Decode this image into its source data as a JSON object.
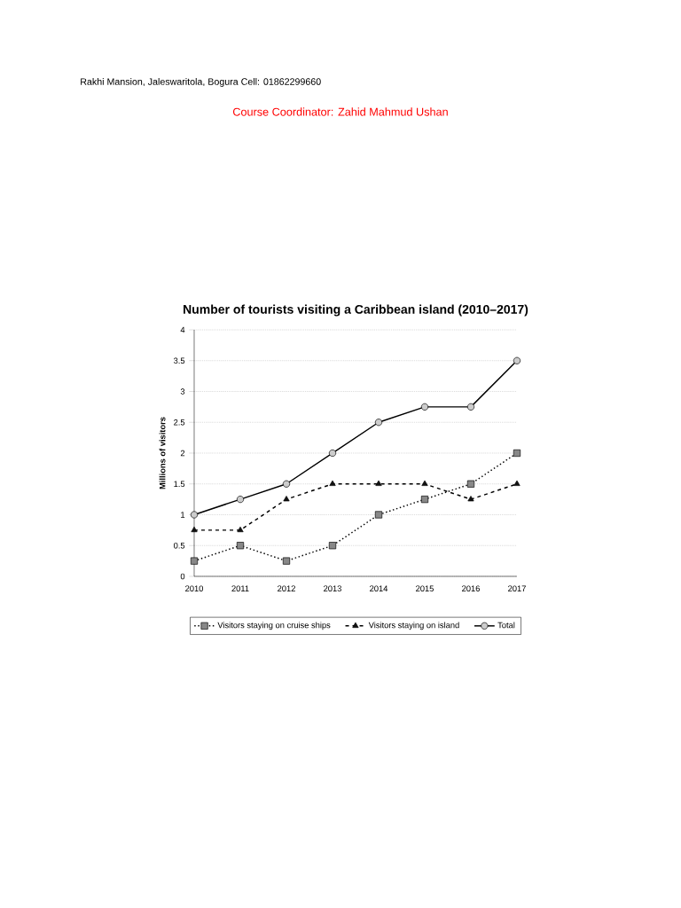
{
  "chart_data": {
    "type": "line",
    "title": "Number of tourists visiting a Caribbean island (2010–2017)",
    "ylabel": "Millions of visitors",
    "annotations": [
      "Rakhi Mansion, Jaleswaritola, Bogura Cell: 01862299660",
      "Course Coordinator: Zahid Mahmud Ushan"
    ],
    "categories": [
      "2010",
      "2011",
      "2012",
      "2013",
      "2014",
      "2015",
      "2016",
      "2017"
    ],
    "series": [
      {
        "name": "Visitors staying on cruise ships",
        "color": "#888888",
        "marker": "square",
        "line_style": "dotted",
        "values": [
          0.25,
          0.5,
          0.25,
          0.5,
          1,
          1.25,
          1.5,
          2
        ]
      },
      {
        "name": "Visitors staying on island",
        "color": "#111111",
        "marker": "triangle",
        "line_style": "dashed",
        "values": [
          0.75,
          0.75,
          1.25,
          1.5,
          1.5,
          1.5,
          1.25,
          1.5
        ]
      },
      {
        "name": "Total",
        "color": "#cccccc",
        "marker": "circle",
        "line_style": "solid",
        "values": [
          1,
          1.25,
          1.5,
          2,
          2.5,
          2.75,
          2.75,
          3.5
        ]
      }
    ],
    "ylim": [
      0,
      4
    ],
    "yticks": [
      0,
      0.5,
      1,
      1.5,
      2,
      2.5,
      3,
      3.5,
      4
    ],
    "grid": "y",
    "legend": "bottom"
  }
}
